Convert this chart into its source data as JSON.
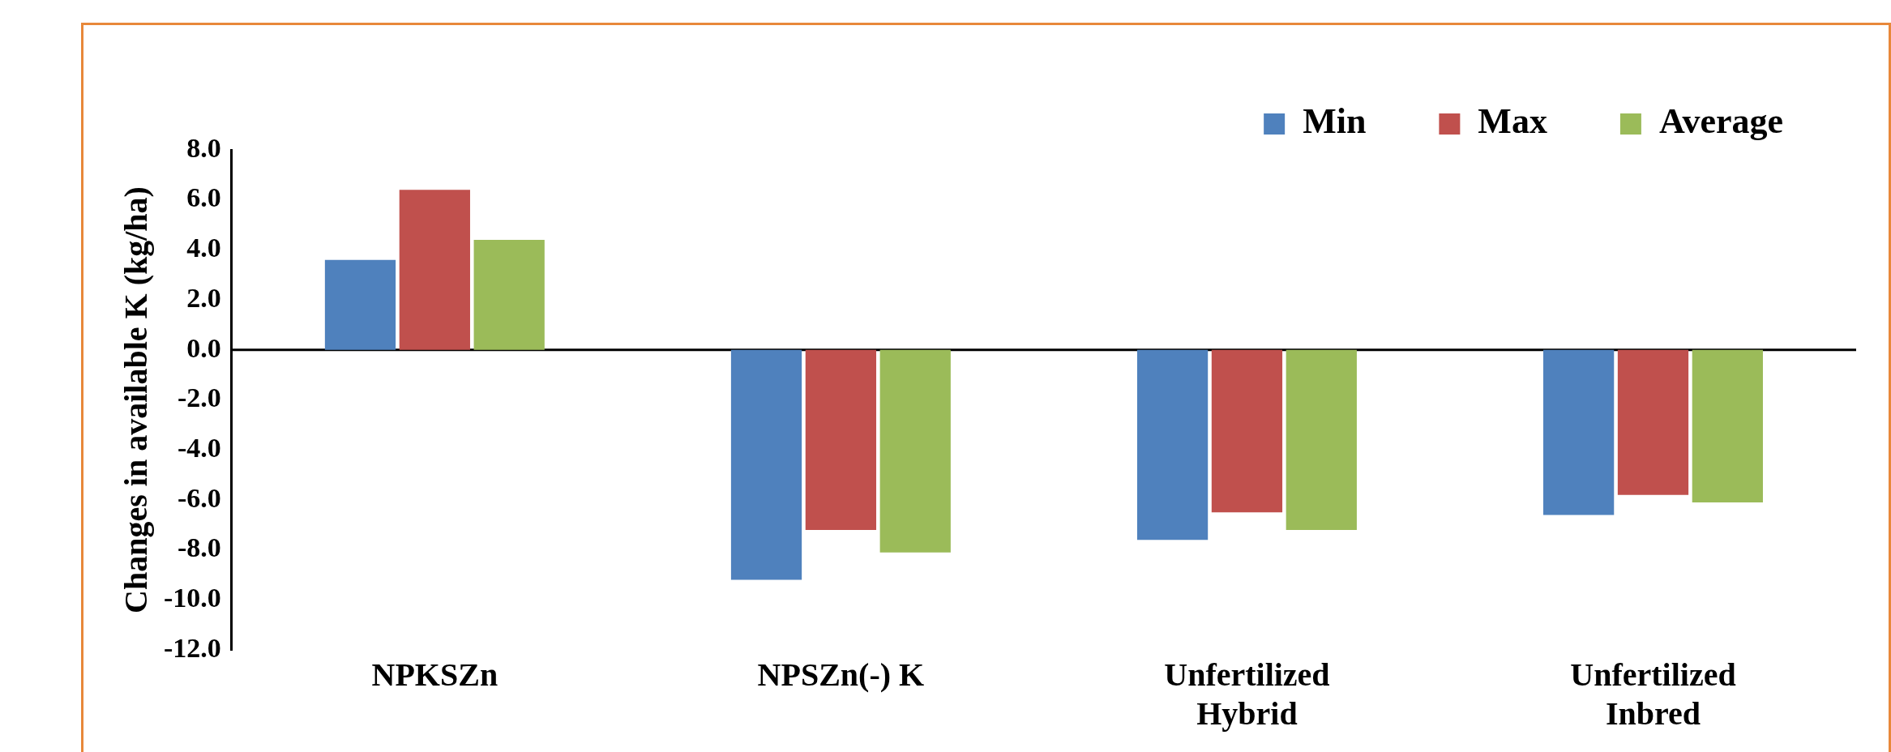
{
  "chart_data": {
    "type": "bar",
    "ylabel": "Changes in available K (kg/ha)",
    "categories": [
      "NPKSZn",
      "NPSZn(-) K",
      "Unfertilized\nHybrid",
      "Unfertilized\nInbred"
    ],
    "series": [
      {
        "name": "Min",
        "color": "#4f81bd",
        "values": [
          3.6,
          -9.2,
          -7.6,
          -6.6
        ]
      },
      {
        "name": "Max",
        "color": "#c0504d",
        "values": [
          6.4,
          -7.2,
          -6.5,
          -5.8
        ]
      },
      {
        "name": "Average",
        "color": "#9bbb59",
        "values": [
          4.4,
          -8.1,
          -7.2,
          -6.1
        ]
      }
    ],
    "ylim": [
      -12,
      8
    ],
    "yticks": [
      {
        "value": -12,
        "label": "-12.0"
      },
      {
        "value": -10,
        "label": "-10.0"
      },
      {
        "value": -8,
        "label": "-8.0"
      },
      {
        "value": -6,
        "label": "-6.0"
      },
      {
        "value": -4,
        "label": "-4.0"
      },
      {
        "value": -2,
        "label": "-2.0"
      },
      {
        "value": 0,
        "label": "0.0"
      },
      {
        "value": 2,
        "label": "2.0"
      },
      {
        "value": 4,
        "label": "4.0"
      },
      {
        "value": 6,
        "label": "6.0"
      },
      {
        "value": 8,
        "label": "8.0"
      }
    ],
    "ref_lines": [
      {
        "axis": "y",
        "value": 0,
        "color": "#000000"
      }
    ],
    "grid": false,
    "legend": "top right"
  }
}
